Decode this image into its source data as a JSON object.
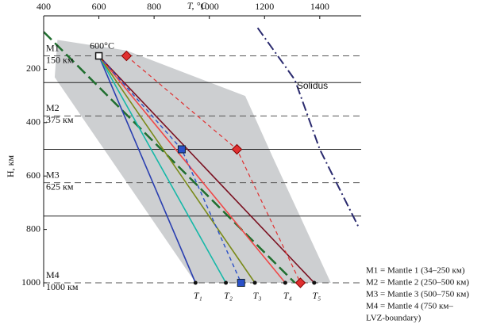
{
  "chart_data": {
    "type": "line",
    "x_label": "T, °C",
    "y_label": "H, км",
    "xlim": [
      400,
      1550
    ],
    "xticks": [
      400,
      600,
      800,
      1000,
      1200,
      1400
    ],
    "ylim": [
      0,
      1000
    ],
    "yticks": [
      200,
      400,
      600,
      800,
      1000
    ],
    "shaded_region": {
      "color": "#c8cacc",
      "x": [
        450,
        700,
        1130,
        1230,
        1440,
        950,
        440
      ],
      "y": [
        90,
        130,
        300,
        530,
        1000,
        1000,
        230
      ]
    },
    "levels": [
      {
        "name": "M1",
        "depth_label": "150 км",
        "value": 150
      },
      {
        "name": "M2",
        "depth_label": "375 км",
        "value": 375
      },
      {
        "name": "M3",
        "depth_label": "625 км",
        "value": 625
      },
      {
        "name": "M4",
        "depth_label": "1000 км",
        "value": 1000
      }
    ],
    "boundaries": [
      250,
      500,
      750
    ],
    "series": [
      {
        "color": "#1f6e2e",
        "dash": "long",
        "width": 2.5,
        "x": [
          400,
          1310
        ],
        "y": [
          60,
          1000
        ]
      },
      {
        "name": "Solidus",
        "color": "#2a2a6e",
        "dash": "dashdot",
        "width": 2,
        "x": [
          1175,
          1310,
          1400,
          1540
        ],
        "y": [
          45,
          240,
          500,
          790
        ]
      },
      {
        "name": "T₁",
        "color": "#2a3fb0",
        "dash": "solid",
        "width": 1.6,
        "marker": "dot",
        "x": [
          600,
          950
        ],
        "y": [
          150,
          1000
        ]
      },
      {
        "name": "T₂",
        "color": "#16b8a8",
        "dash": "solid",
        "width": 1.6,
        "marker": "dot",
        "x": [
          600,
          1060
        ],
        "y": [
          150,
          1000
        ]
      },
      {
        "name": "T₃",
        "color": "#7a8a1a",
        "dash": "solid",
        "width": 1.6,
        "marker": "dot",
        "x": [
          600,
          1165
        ],
        "y": [
          150,
          1000
        ]
      },
      {
        "name": "T₄",
        "color": "#f04848",
        "dash": "solid",
        "width": 1.6,
        "marker": "dot",
        "x": [
          600,
          1275
        ],
        "y": [
          150,
          1000
        ]
      },
      {
        "name": "T₅",
        "color": "#7a1020",
        "dash": "solid",
        "width": 1.6,
        "marker": "dot",
        "x": [
          600,
          1380
        ],
        "y": [
          150,
          1000
        ]
      },
      {
        "color": "#2a50c8",
        "dash": "short",
        "width": 1.4,
        "marker": "square",
        "x": [
          600,
          900,
          1115
        ],
        "y": [
          150,
          500,
          1000
        ]
      },
      {
        "color": "#e03030",
        "dash": "short",
        "width": 1.2,
        "marker": "diamond",
        "x": [
          700,
          1100,
          1330
        ],
        "y": [
          150,
          500,
          1000
        ]
      }
    ],
    "annotations": [
      {
        "text": "600°C",
        "x": 600,
        "y": 150
      }
    ],
    "legend_text": [
      "M1 = Mantle 1 (34–250 км)",
      "M2 = Mantle 2 (250–500 км)",
      "M3 = Mantle 3 (500–750 км)",
      "M4 = Mantle 4 (750 км–",
      "LVZ-boundary)"
    ]
  }
}
